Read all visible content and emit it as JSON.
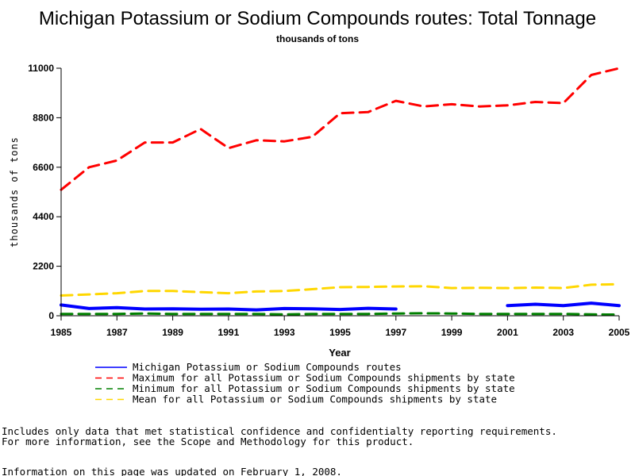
{
  "chart_data": {
    "type": "line",
    "title": "Michigan Potassium or Sodium Compounds routes: Total Tonnage",
    "subtitle": "thousands of tons",
    "xlabel": "Year",
    "ylabel": "thousands of tons",
    "xlim": [
      1985,
      2005
    ],
    "ylim": [
      0,
      11000
    ],
    "x_ticks": [
      "1985",
      "1987",
      "1989",
      "1991",
      "1993",
      "1995",
      "1997",
      "1999",
      "2001",
      "2003",
      "2005"
    ],
    "y_ticks": [
      "0",
      "2200",
      "4400",
      "6600",
      "8800",
      "11000"
    ],
    "grid": false,
    "legend_position": "bottom",
    "series": [
      {
        "name": "Michigan Potassium or Sodium Compounds routes",
        "color": "#0000ff",
        "dash": "solid",
        "points": [
          [
            1985,
            480
          ],
          [
            1986,
            320
          ],
          [
            1987,
            360
          ],
          [
            1988,
            300
          ],
          [
            1989,
            310
          ],
          [
            1990,
            290
          ],
          [
            1991,
            300
          ],
          [
            1992,
            260
          ],
          [
            1993,
            320
          ],
          [
            1994,
            310
          ],
          [
            1995,
            280
          ],
          [
            1996,
            330
          ],
          [
            1997,
            300
          ],
          null,
          [
            2001,
            450
          ],
          [
            2002,
            510
          ],
          [
            2003,
            450
          ],
          [
            2004,
            560
          ],
          [
            2005,
            450
          ]
        ]
      },
      {
        "name": "Maximum for all Potassium or Sodium Compounds shipments by state",
        "color": "#ff0000",
        "dash": "dashed",
        "points": [
          [
            1985,
            5600
          ],
          [
            1986,
            6600
          ],
          [
            1987,
            6900
          ],
          [
            1988,
            7700
          ],
          [
            1989,
            7700
          ],
          [
            1990,
            8300
          ],
          [
            1991,
            7450
          ],
          [
            1992,
            7800
          ],
          [
            1993,
            7750
          ],
          [
            1994,
            7950
          ],
          [
            1995,
            9000
          ],
          [
            1996,
            9050
          ],
          [
            1997,
            9550
          ],
          [
            1998,
            9300
          ],
          [
            1999,
            9400
          ],
          [
            2000,
            9300
          ],
          [
            2001,
            9350
          ],
          [
            2002,
            9500
          ],
          [
            2003,
            9450
          ],
          [
            2004,
            10700
          ],
          [
            2005,
            11000
          ]
        ]
      },
      {
        "name": "Minimum for all Potassium or Sodium Compounds shipments by state",
        "color": "#008000",
        "dash": "dashed",
        "points": [
          [
            1985,
            80
          ],
          [
            1986,
            80
          ],
          [
            1987,
            80
          ],
          [
            1988,
            100
          ],
          [
            1989,
            80
          ],
          [
            1990,
            80
          ],
          [
            1991,
            80
          ],
          [
            1992,
            80
          ],
          [
            1993,
            60
          ],
          [
            1994,
            80
          ],
          [
            1995,
            80
          ],
          [
            1996,
            80
          ],
          [
            1997,
            100
          ],
          [
            1998,
            110
          ],
          [
            1999,
            100
          ],
          [
            2000,
            80
          ],
          [
            2001,
            80
          ],
          [
            2002,
            80
          ],
          [
            2003,
            80
          ],
          [
            2004,
            60
          ],
          [
            2005,
            50
          ]
        ]
      },
      {
        "name": "Mean for all Potassium or Sodium Compounds shipments by state",
        "color": "#ffd700",
        "dash": "dashed",
        "points": [
          [
            1985,
            900
          ],
          [
            1986,
            950
          ],
          [
            1987,
            1000
          ],
          [
            1988,
            1100
          ],
          [
            1989,
            1100
          ],
          [
            1990,
            1050
          ],
          [
            1991,
            1000
          ],
          [
            1992,
            1080
          ],
          [
            1993,
            1100
          ],
          [
            1994,
            1180
          ],
          [
            1995,
            1270
          ],
          [
            1996,
            1280
          ],
          [
            1997,
            1300
          ],
          [
            1998,
            1310
          ],
          [
            1999,
            1230
          ],
          [
            2000,
            1240
          ],
          [
            2001,
            1230
          ],
          [
            2002,
            1250
          ],
          [
            2003,
            1230
          ],
          [
            2004,
            1380
          ],
          [
            2005,
            1400
          ]
        ]
      }
    ]
  },
  "notes": [
    "Includes only data that met statistical confidence and confidentialty reporting requirements.",
    "For more information, see the Scope and Methodology for this product.",
    "Information on this page was updated on February 1, 2008."
  ]
}
